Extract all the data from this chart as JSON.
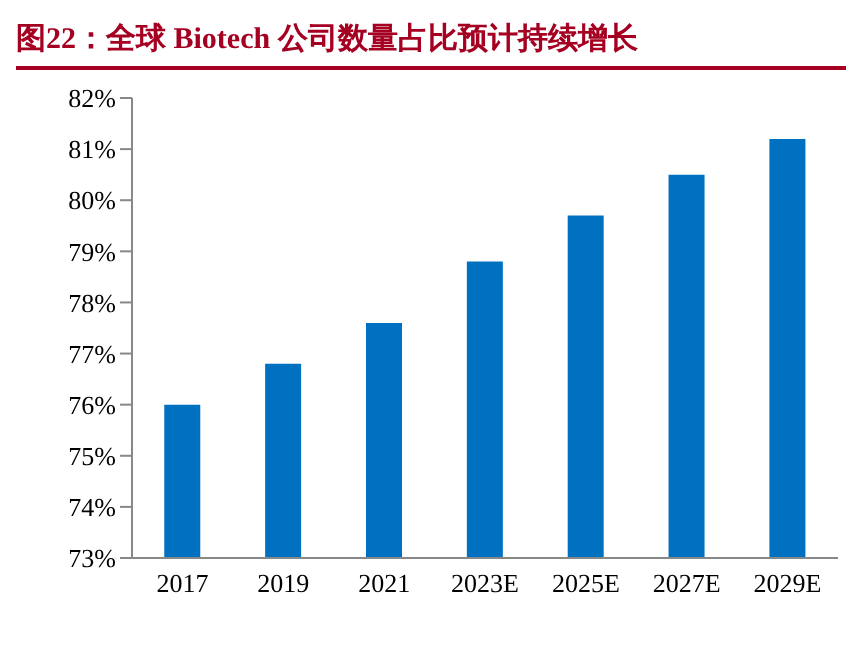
{
  "chart_data": {
    "type": "bar",
    "title": "图22：全球 Biotech 公司数量占比预计持续增长",
    "categories": [
      "2017",
      "2019",
      "2021",
      "2023E",
      "2025E",
      "2027E",
      "2029E"
    ],
    "values": [
      76.0,
      76.8,
      77.6,
      78.8,
      79.7,
      80.5,
      81.2
    ],
    "color": "#0070c0",
    "ylim": [
      73,
      82
    ],
    "yticks": [
      {
        "value": 73,
        "label": "73%"
      },
      {
        "value": 74,
        "label": "74%"
      },
      {
        "value": 75,
        "label": "75%"
      },
      {
        "value": 76,
        "label": "76%"
      },
      {
        "value": 77,
        "label": "77%"
      },
      {
        "value": 78,
        "label": "78%"
      },
      {
        "value": 79,
        "label": "79%"
      },
      {
        "value": 80,
        "label": "80%"
      },
      {
        "value": 81,
        "label": "81%"
      },
      {
        "value": 82,
        "label": "82%"
      }
    ],
    "grid": false,
    "legend": false
  }
}
